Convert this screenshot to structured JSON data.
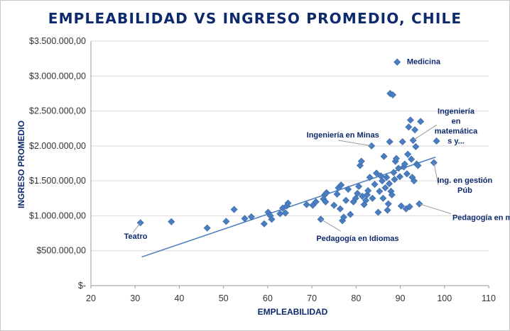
{
  "chart_data": {
    "type": "scatter",
    "title": "EMPLEABILIDAD  VS INGRESO PROMEDIO,  CHILE",
    "xlabel": "EMPLEABILIDAD",
    "ylabel": "INGRESO PROMEDIO",
    "xlim": [
      20,
      110
    ],
    "ylim": [
      0,
      3500000
    ],
    "x_ticks": [
      "20",
      "30",
      "40",
      "50",
      "60",
      "70",
      "80",
      "90",
      "100",
      "110"
    ],
    "y_ticks": [
      "$-",
      "$500.000,00",
      "$1.000.000,00",
      "$1.500.000,00",
      "$2.000.000,00",
      "$2.500.000,00",
      "$3.000.000,00",
      "$3.500.000,00"
    ],
    "grid": true,
    "marker_color": "#4a7dbf",
    "trendline": {
      "x": [
        31.5,
        98
      ],
      "y": [
        410000,
        1840000
      ],
      "color": "#4a7dbf"
    },
    "points": [
      {
        "x": 31.2,
        "y": 900000
      },
      {
        "x": 38.2,
        "y": 915000
      },
      {
        "x": 46.3,
        "y": 825000
      },
      {
        "x": 50.6,
        "y": 920000
      },
      {
        "x": 52.4,
        "y": 1090000
      },
      {
        "x": 54.8,
        "y": 960000
      },
      {
        "x": 56.3,
        "y": 985000
      },
      {
        "x": 59.2,
        "y": 885000
      },
      {
        "x": 60.1,
        "y": 1050000
      },
      {
        "x": 60.6,
        "y": 1000000
      },
      {
        "x": 60.9,
        "y": 950000
      },
      {
        "x": 62.8,
        "y": 1030000
      },
      {
        "x": 63.4,
        "y": 1110000
      },
      {
        "x": 64.0,
        "y": 1040000
      },
      {
        "x": 64.3,
        "y": 1140000
      },
      {
        "x": 64.6,
        "y": 1180000
      },
      {
        "x": 68.8,
        "y": 1160000
      },
      {
        "x": 70.2,
        "y": 1150000
      },
      {
        "x": 70.9,
        "y": 1200000
      },
      {
        "x": 72.0,
        "y": 950000
      },
      {
        "x": 72.6,
        "y": 1240000
      },
      {
        "x": 72.9,
        "y": 1300000
      },
      {
        "x": 73.1,
        "y": 1200000
      },
      {
        "x": 73.3,
        "y": 1330000
      },
      {
        "x": 75.0,
        "y": 1150000
      },
      {
        "x": 75.7,
        "y": 1310000
      },
      {
        "x": 76.0,
        "y": 1400000
      },
      {
        "x": 76.4,
        "y": 1100000
      },
      {
        "x": 76.6,
        "y": 1440000
      },
      {
        "x": 76.9,
        "y": 930000
      },
      {
        "x": 77.2,
        "y": 980000
      },
      {
        "x": 77.7,
        "y": 1220000
      },
      {
        "x": 78.2,
        "y": 1380000
      },
      {
        "x": 78.7,
        "y": 1020000
      },
      {
        "x": 79.4,
        "y": 1200000
      },
      {
        "x": 79.9,
        "y": 1250000
      },
      {
        "x": 80.3,
        "y": 1320000
      },
      {
        "x": 80.6,
        "y": 1420000
      },
      {
        "x": 80.9,
        "y": 1720000
      },
      {
        "x": 81.2,
        "y": 1780000
      },
      {
        "x": 81.4,
        "y": 1280000
      },
      {
        "x": 81.8,
        "y": 1160000
      },
      {
        "x": 82.2,
        "y": 1220000
      },
      {
        "x": 82.5,
        "y": 1300000
      },
      {
        "x": 82.7,
        "y": 1360000
      },
      {
        "x": 83.1,
        "y": 1550000
      },
      {
        "x": 83.5,
        "y": 2000000
      },
      {
        "x": 83.7,
        "y": 1250000
      },
      {
        "x": 84.2,
        "y": 1450000
      },
      {
        "x": 84.6,
        "y": 1610000
      },
      {
        "x": 85.0,
        "y": 1050000
      },
      {
        "x": 85.3,
        "y": 1350000
      },
      {
        "x": 85.6,
        "y": 1570000
      },
      {
        "x": 85.9,
        "y": 1500000
      },
      {
        "x": 86.1,
        "y": 1250000
      },
      {
        "x": 86.3,
        "y": 1850000
      },
      {
        "x": 86.6,
        "y": 1400000
      },
      {
        "x": 86.9,
        "y": 1550000
      },
      {
        "x": 87.1,
        "y": 1080000
      },
      {
        "x": 87.3,
        "y": 1170000
      },
      {
        "x": 87.5,
        "y": 1460000
      },
      {
        "x": 87.6,
        "y": 2060000
      },
      {
        "x": 87.7,
        "y": 2750000
      },
      {
        "x": 87.9,
        "y": 1350000
      },
      {
        "x": 88.1,
        "y": 1300000
      },
      {
        "x": 88.3,
        "y": 2730000
      },
      {
        "x": 88.5,
        "y": 1620000
      },
      {
        "x": 88.7,
        "y": 1520000
      },
      {
        "x": 88.9,
        "y": 1780000
      },
      {
        "x": 89.1,
        "y": 1820000
      },
      {
        "x": 89.3,
        "y": 3200000
      },
      {
        "x": 89.6,
        "y": 1680000
      },
      {
        "x": 89.9,
        "y": 1560000
      },
      {
        "x": 90.2,
        "y": 1140000
      },
      {
        "x": 90.5,
        "y": 2060000
      },
      {
        "x": 90.8,
        "y": 1700000
      },
      {
        "x": 91.0,
        "y": 1740000
      },
      {
        "x": 91.3,
        "y": 1100000
      },
      {
        "x": 91.5,
        "y": 1600000
      },
      {
        "x": 91.7,
        "y": 1880000
      },
      {
        "x": 91.9,
        "y": 2270000
      },
      {
        "x": 92.1,
        "y": 1130000
      },
      {
        "x": 92.3,
        "y": 2370000
      },
      {
        "x": 92.5,
        "y": 1810000
      },
      {
        "x": 92.7,
        "y": 1550000
      },
      {
        "x": 92.9,
        "y": 2080000
      },
      {
        "x": 93.1,
        "y": 1500000
      },
      {
        "x": 93.3,
        "y": 2230000
      },
      {
        "x": 93.5,
        "y": 1990000
      },
      {
        "x": 93.7,
        "y": 1740000
      },
      {
        "x": 94.0,
        "y": 1720000
      },
      {
        "x": 94.3,
        "y": 1170000
      },
      {
        "x": 94.6,
        "y": 2350000
      },
      {
        "x": 97.6,
        "y": 1760000
      },
      {
        "x": 98.2,
        "y": 2070000
      }
    ],
    "annotations": [
      {
        "lines": [
          "Medicina"
        ],
        "point": [
          89.3,
          3200000
        ],
        "label_at": [
          91.5,
          3170000
        ],
        "leader": false
      },
      {
        "lines": [
          "Ingeniería en Minas"
        ],
        "point": [
          83.5,
          2000000
        ],
        "label_at": [
          68.8,
          2120000
        ],
        "leader": true,
        "leader_from": [
          76.0,
          2080000
        ]
      },
      {
        "lines": [
          "Ingeniería",
          "en",
          "matemática",
          "s y..."
        ],
        "point": [
          92.9,
          2080000
        ],
        "label_at": [
          101.0,
          2460000
        ],
        "leader": true,
        "leader_from": [
          98.2,
          2300000
        ]
      },
      {
        "lines": [
          "Ing. en gestión",
          "Púb"
        ],
        "point": [
          97.6,
          1760000
        ],
        "label_at": [
          103.0,
          1470000
        ],
        "leader": true,
        "leader_from": [
          98.6,
          1440000
        ]
      },
      {
        "lines": [
          "Pedagogía en matemáticas"
        ],
        "point": [
          94.3,
          1170000
        ],
        "label_at": [
          101.8,
          940000
        ],
        "leader": true,
        "leader_from": [
          101.5,
          1030000
        ]
      },
      {
        "lines": [
          "Teatro"
        ],
        "point": [
          31.2,
          900000
        ],
        "label_at": [
          27.5,
          670000
        ],
        "leader": true,
        "leader_from": [
          29.5,
          760000
        ]
      },
      {
        "lines": [
          "Pedagogía en Idiomas"
        ],
        "point": [
          72.0,
          950000
        ],
        "label_at": [
          71.0,
          640000
        ],
        "leader": true,
        "leader_from": [
          76.5,
          780000
        ]
      }
    ]
  }
}
